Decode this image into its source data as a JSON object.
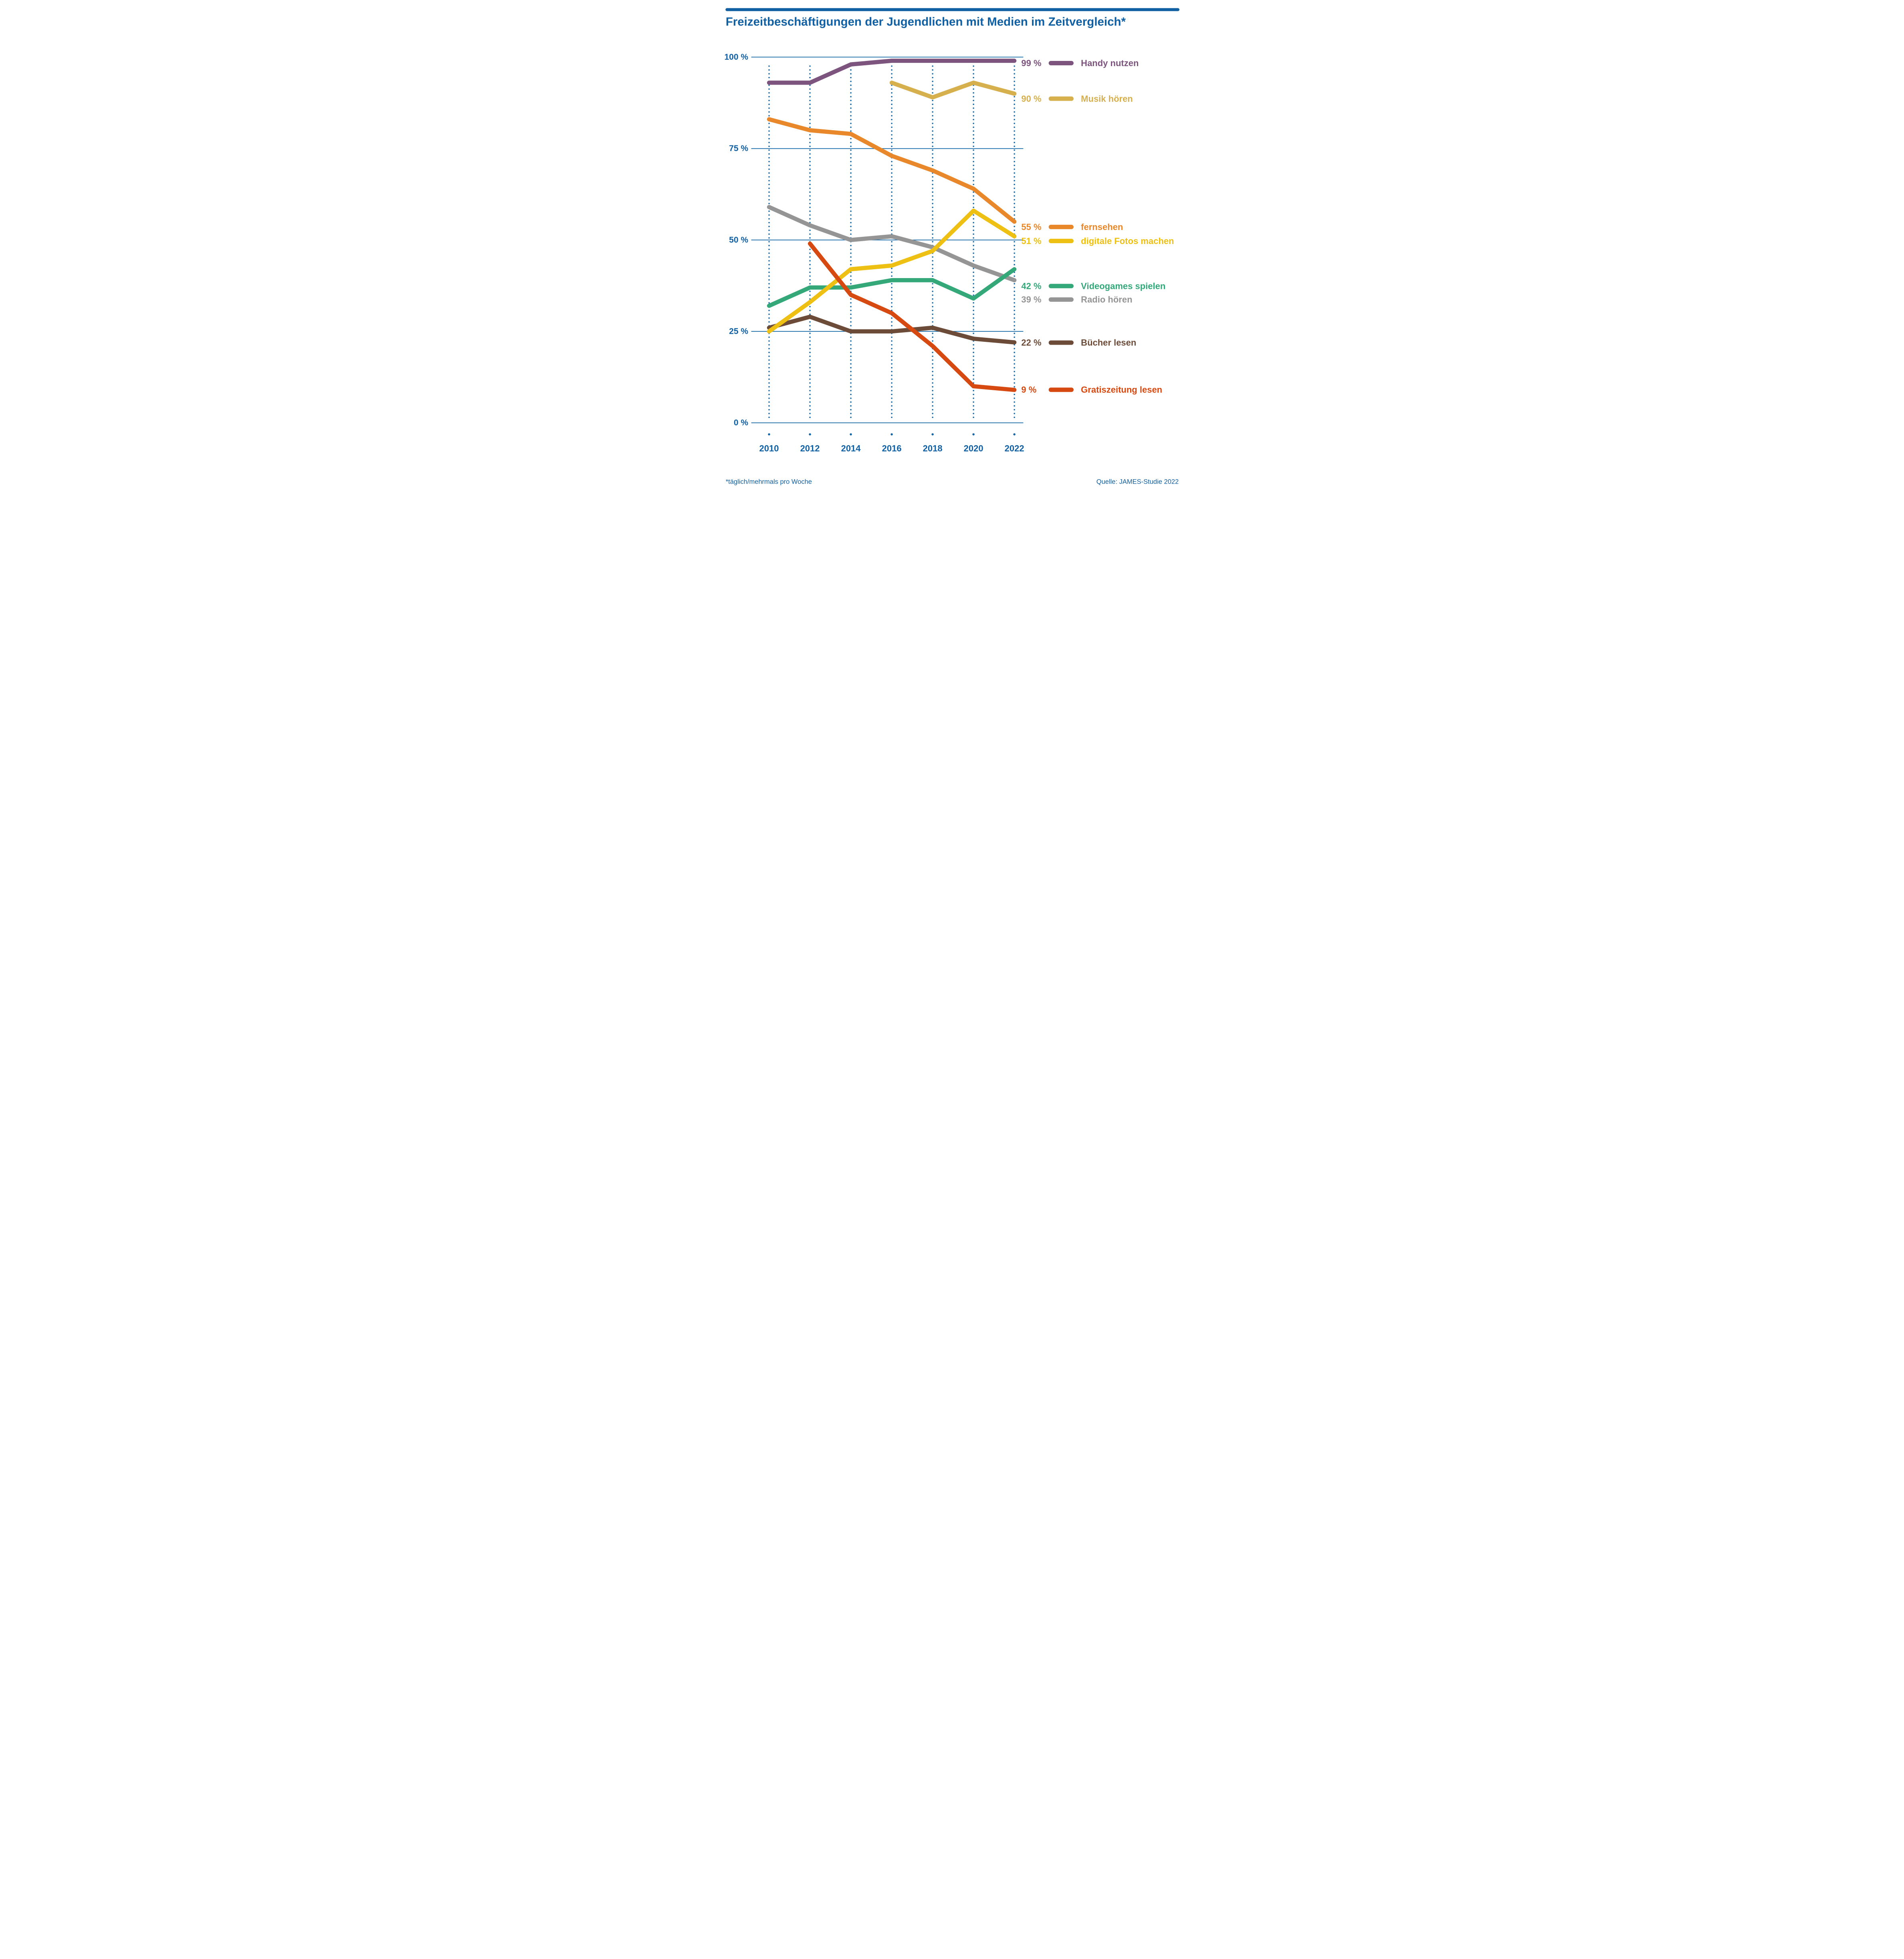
{
  "title": "Freizeitbeschäftigungen der Jugendlichen mit Medien im Zeitvergleich*",
  "footnote": "*täglich/mehrmals pro Woche",
  "source": "Quelle: JAMES-Studie 2022",
  "colors": {
    "accent_blue": "#1160a3",
    "grid_blue": "#1366a6"
  },
  "chart_data": {
    "type": "line",
    "title": "Freizeitbeschäftigungen der Jugendlichen mit Medien im Zeitvergleich*",
    "x": [
      2010,
      2012,
      2014,
      2016,
      2018,
      2020,
      2022
    ],
    "x_tick_labels": [
      "2010",
      "2012",
      "2014",
      "2016",
      "2018",
      "2020",
      "2022"
    ],
    "ylim": [
      0,
      100
    ],
    "y_ticks": [
      100,
      75,
      50,
      25,
      0
    ],
    "y_tick_labels": [
      "100 %",
      "75 %",
      "50 %",
      "25 %",
      "0 %"
    ],
    "grid": "horizontal solid lines at 25% steps, vertical dotted lines per year",
    "legend_position": "right of plot, aligned to line endpoints",
    "series": [
      {
        "name": "Handy nutzen",
        "color": "#7c547d",
        "end_label": "99 %",
        "values": [
          93,
          93,
          98,
          99,
          99,
          99,
          99
        ]
      },
      {
        "name": "Musik hören",
        "color": "#d7b04e",
        "end_label": "90 %",
        "values": [
          null,
          null,
          null,
          93,
          89,
          93,
          90
        ]
      },
      {
        "name": "fernsehen",
        "color": "#e8882b",
        "end_label": "55 %",
        "values": [
          83,
          80,
          79,
          73,
          69,
          64,
          55
        ]
      },
      {
        "name": "digitale Fotos machen",
        "color": "#edc013",
        "end_label": "51 %",
        "values": [
          25,
          33,
          42,
          43,
          47,
          58,
          51
        ]
      },
      {
        "name": "Videogames spielen",
        "color": "#35a87a",
        "end_label": "42 %",
        "values": [
          32,
          37,
          37,
          39,
          39,
          34,
          42
        ]
      },
      {
        "name": "Radio hören",
        "color": "#959595",
        "end_label": "39 %",
        "values": [
          59,
          54,
          50,
          51,
          48,
          43,
          39
        ]
      },
      {
        "name": "Bücher lesen",
        "color": "#6c4c38",
        "end_label": "22 %",
        "values": [
          26,
          29,
          25,
          25,
          26,
          23,
          22
        ]
      },
      {
        "name": "Gratiszeitung lesen",
        "color": "#d64a12",
        "end_label": "9 %",
        "values": [
          null,
          49,
          35,
          30,
          21,
          10,
          9
        ]
      }
    ]
  }
}
